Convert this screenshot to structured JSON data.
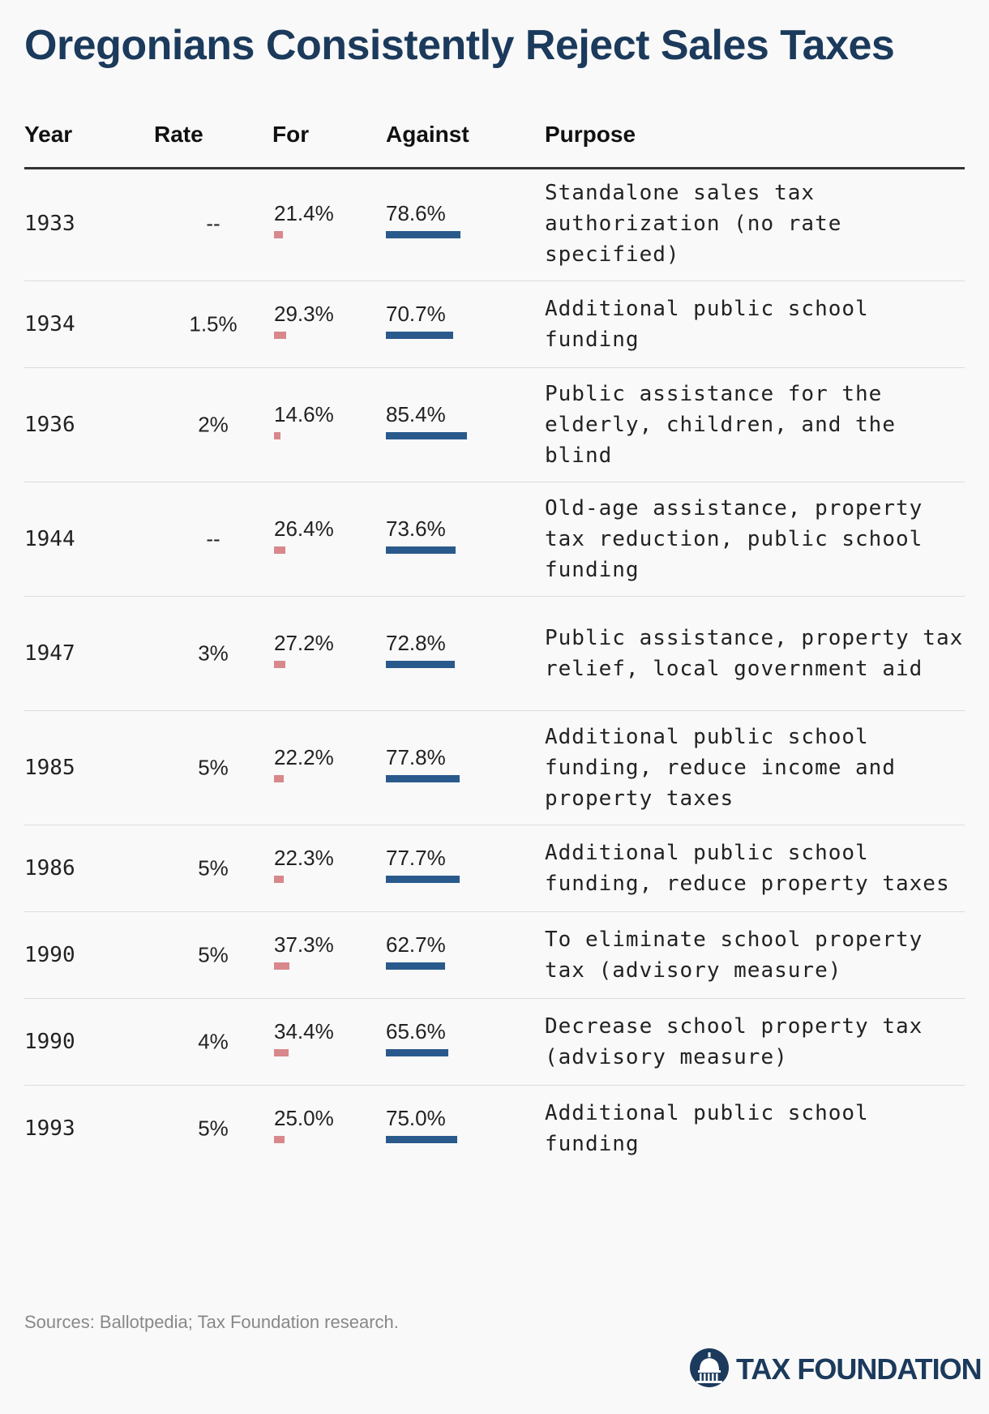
{
  "title": "Oregonians Consistently Reject Sales Taxes",
  "headers": {
    "year": "Year",
    "rate": "Rate",
    "for": "For",
    "against": "Against",
    "purpose": "Purpose"
  },
  "source": "Sources: Ballotpedia; Tax Foundation research.",
  "logo": {
    "text": "TAX FOUNDATION"
  },
  "colors": {
    "title": "#1b3a5c",
    "for_bar": "#d8888b",
    "against_bar": "#2a5a8c"
  },
  "chart_data": {
    "type": "table",
    "title": "Oregonians Consistently Reject Sales Taxes",
    "columns": [
      "Year",
      "Rate",
      "For",
      "Against",
      "Purpose"
    ],
    "rows": [
      {
        "year": "1933",
        "rate": "--",
        "for": "21.4%",
        "against": "78.6%",
        "for_value": 21.4,
        "against_value": 78.6,
        "purpose": "Standalone sales tax authorization (no rate specified)"
      },
      {
        "year": "1934",
        "rate": "1.5%",
        "for": "29.3%",
        "against": "70.7%",
        "for_value": 29.3,
        "against_value": 70.7,
        "purpose": "Additional public school funding"
      },
      {
        "year": "1936",
        "rate": "2%",
        "for": "14.6%",
        "against": "85.4%",
        "for_value": 14.6,
        "against_value": 85.4,
        "purpose": "Public assistance for the elderly, children, and the blind"
      },
      {
        "year": "1944",
        "rate": "--",
        "for": "26.4%",
        "against": "73.6%",
        "for_value": 26.4,
        "against_value": 73.6,
        "purpose": "Old-age assistance, property tax reduction, public school funding"
      },
      {
        "year": "1947",
        "rate": "3%",
        "for": "27.2%",
        "against": "72.8%",
        "for_value": 27.2,
        "against_value": 72.8,
        "purpose": "Public assistance, property tax relief, local government aid"
      },
      {
        "year": "1985",
        "rate": "5%",
        "for": "22.2%",
        "against": "77.8%",
        "for_value": 22.2,
        "against_value": 77.8,
        "purpose": "Additional public school funding, reduce income and property taxes"
      },
      {
        "year": "1986",
        "rate": "5%",
        "for": "22.3%",
        "against": "77.7%",
        "for_value": 22.3,
        "against_value": 77.7,
        "purpose": "Additional public school funding, reduce property taxes"
      },
      {
        "year": "1990",
        "rate": "5%",
        "for": "37.3%",
        "against": "62.7%",
        "for_value": 37.3,
        "against_value": 62.7,
        "purpose": "To eliminate school property tax (advisory measure)"
      },
      {
        "year": "1990",
        "rate": "4%",
        "for": "34.4%",
        "against": "65.6%",
        "for_value": 34.4,
        "against_value": 65.6,
        "purpose": "Decrease school property tax (advisory measure)"
      },
      {
        "year": "1993",
        "rate": "5%",
        "for": "25.0%",
        "against": "75.0%",
        "for_value": 25.0,
        "against_value": 75.0,
        "purpose": "Additional public school funding"
      }
    ]
  }
}
